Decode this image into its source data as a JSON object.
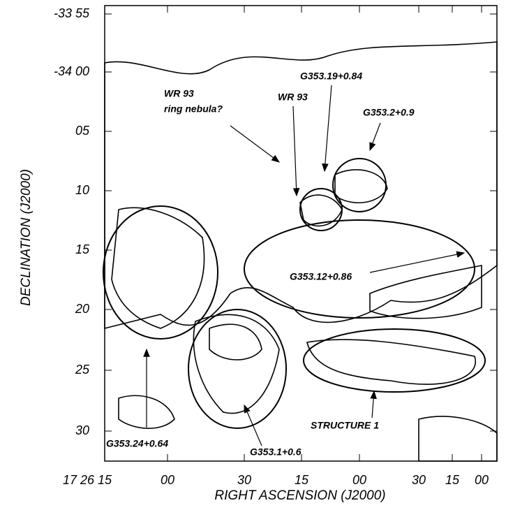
{
  "axes": {
    "y_label": "DECLINATION (J2000)",
    "x_label": "RIGHT ASCENSION (J2000)",
    "y_ticks": [
      "-33 55",
      "-34 00",
      "05",
      "10",
      "15",
      "20",
      "25",
      "30"
    ],
    "x_ticks": [
      "17 26 15",
      "00",
      "30",
      "15",
      "00",
      "30",
      "15",
      "00"
    ]
  },
  "annotations": [
    "WR 93",
    "ring nebula?",
    "WR 93",
    "G353.19+0.84",
    "G353.2+0.9",
    "G353.12+0.86",
    "STRUCTURE 1",
    "G353.24+0.64",
    "G353.1+0.6"
  ]
}
